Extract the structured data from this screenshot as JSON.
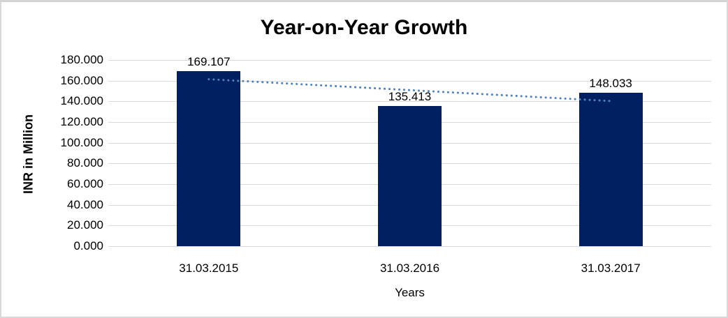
{
  "chart_data": {
    "type": "bar",
    "title": "Year-on-Year Growth",
    "xlabel": "Years",
    "ylabel": "INR in Million",
    "categories": [
      "31.03.2015",
      "31.03.2016",
      "31.03.2017"
    ],
    "values": [
      169.107,
      135.413,
      148.033
    ],
    "data_labels": [
      "169.107",
      "135.413",
      "148.033"
    ],
    "ylim": [
      0,
      180
    ],
    "ytick_step": 20,
    "ytick_labels": [
      "0.000",
      "20.000",
      "40.000",
      "60.000",
      "80.000",
      "100.000",
      "120.000",
      "140.000",
      "160.000",
      "180.000"
    ],
    "grid": true,
    "legend": "none",
    "bar_color": "#002060",
    "gridline_color": "#d9d9d9",
    "text_color": "#000000",
    "trendline": {
      "type": "linear",
      "style": "dotted",
      "color": "#4f81bd",
      "start_value": 161.4,
      "end_value": 140.3
    },
    "frame_border_color": "#d9d9d9"
  }
}
